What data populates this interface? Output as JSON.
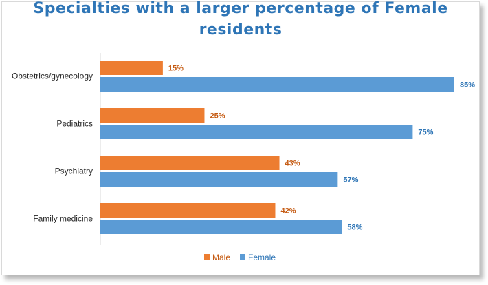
{
  "chart_data": {
    "type": "bar",
    "orientation": "horizontal",
    "title": "Specialties with a larger percentage of Female residents",
    "categories": [
      "Obstetrics/gynecology",
      "Pediatrics",
      "Psychiatry",
      "Family medicine"
    ],
    "series": [
      {
        "name": "Male",
        "color": "#ed7d31",
        "values": [
          15,
          25,
          43,
          42
        ],
        "labels": [
          "15%",
          "25%",
          "43%",
          "42%"
        ]
      },
      {
        "name": "Female",
        "color": "#5b9bd5",
        "values": [
          85,
          75,
          57,
          58
        ],
        "labels": [
          "85%",
          "75%",
          "57%",
          "58%"
        ]
      }
    ],
    "label_colors": {
      "Male": "#c55a11",
      "Female": "#2e75b6"
    },
    "xlim": [
      0,
      85
    ],
    "xlabel": "",
    "ylabel": "",
    "grid": false,
    "legend": "bottom"
  }
}
